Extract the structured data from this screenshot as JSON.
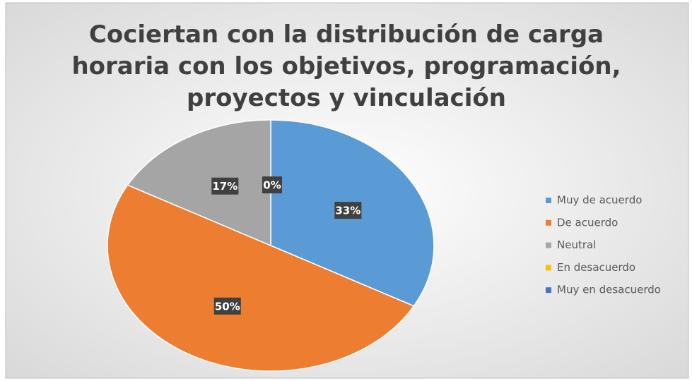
{
  "chart_data": {
    "type": "pie",
    "title": "Cociertan con la distribución de carga horaria con los objetivos, programación, proyectos y vinculación",
    "categories": [
      "Muy de acuerdo",
      "De acuerdo",
      "Neutral",
      "En desacuerdo",
      "Muy en desacuerdo"
    ],
    "values": [
      33,
      50,
      17,
      0,
      0
    ],
    "value_labels": [
      "33%",
      "50%",
      "17%",
      "0%",
      null
    ],
    "colors": [
      "#5b9bd5",
      "#ed7d31",
      "#a5a5a5",
      "#ffc000",
      "#4472c4"
    ],
    "legend": "right"
  }
}
